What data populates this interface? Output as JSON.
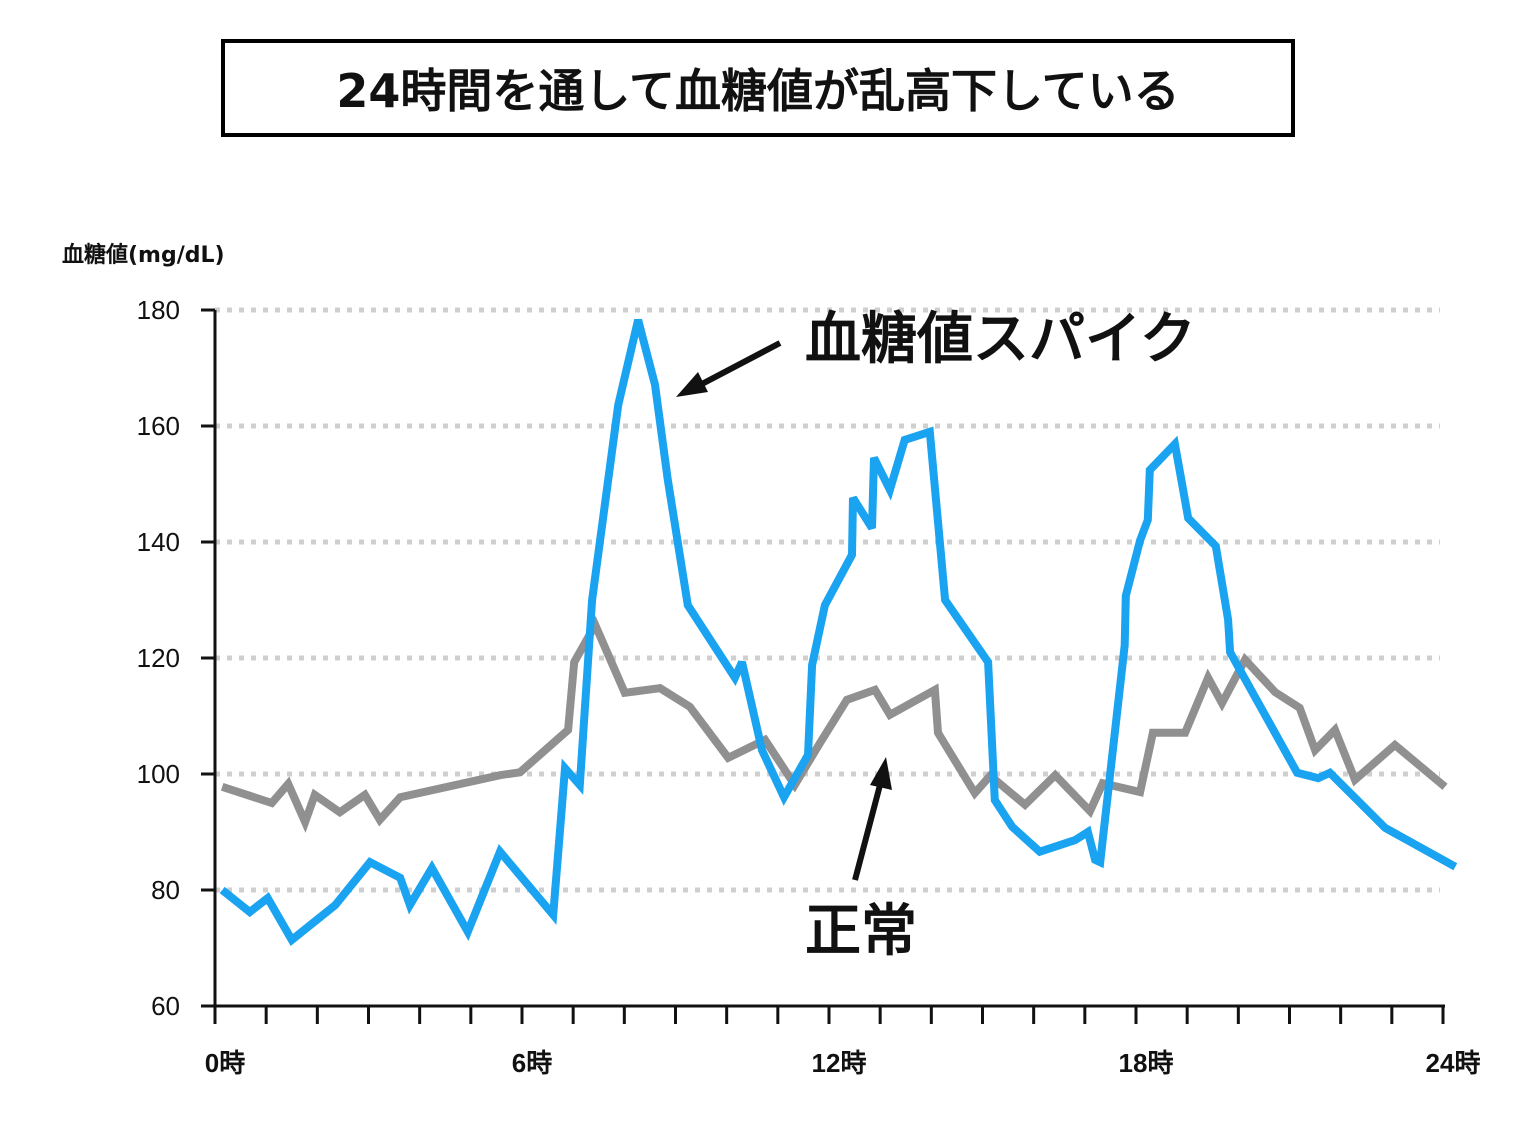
{
  "title": "24時間を通して血糖値が乱高下している",
  "chart_data": {
    "type": "line",
    "title": "24時間を通して血糖値が乱高下している",
    "ylabel": "血糖値(mg/dL)",
    "xlabel": "",
    "ylim": [
      60,
      180
    ],
    "xlim": [
      0,
      24
    ],
    "yticks": [
      60,
      80,
      100,
      120,
      140,
      160,
      180
    ],
    "ytick_labels": [
      "60",
      "80",
      "100",
      "120",
      "140",
      "160",
      "180"
    ],
    "xticks": [
      0,
      6,
      12,
      18,
      24
    ],
    "xtick_labels": [
      "0時",
      "6時",
      "12時",
      "18時",
      "24時"
    ],
    "grid": "horizontal dotted",
    "series": [
      {
        "color": "#1aa3f0",
        "x": [
          0.14,
          0.68,
          1.03,
          1.5,
          2.35,
          3.03,
          3.62,
          3.81,
          4.24,
          4.94,
          5.57,
          6.61,
          6.84,
          7.13,
          7.37,
          7.88,
          8.27,
          8.6,
          8.85,
          9.24,
          10.16,
          10.3,
          10.69,
          11.12,
          11.59,
          11.67,
          11.92,
          12.45,
          12.47,
          12.84,
          12.88,
          13.19,
          13.48,
          13.97,
          14.27,
          15.11,
          15.24,
          15.58,
          16.12,
          16.81,
          17.06,
          17.2,
          17.3,
          17.78,
          17.8,
          18.08,
          18.23,
          18.27,
          18.76,
          19.02,
          19.56,
          19.8,
          19.84,
          21.15,
          21.56,
          21.79,
          22.87,
          24.24
        ],
        "y": [
          80.0,
          76.2,
          78.6,
          71.4,
          77.4,
          84.8,
          82.1,
          77.4,
          83.8,
          72.8,
          86.6,
          75.7,
          101.0,
          98.1,
          130.0,
          163.6,
          178.3,
          167.1,
          150.7,
          129.1,
          116.6,
          119.3,
          104.1,
          96.0,
          103.3,
          118.8,
          129.1,
          137.8,
          147.6,
          142.4,
          154.5,
          149.0,
          157.6,
          159.0,
          130.0,
          119.3,
          95.5,
          90.9,
          86.6,
          88.6,
          90.0,
          85.2,
          84.8,
          122.2,
          130.7,
          140.3,
          143.8,
          152.4,
          156.9,
          144.1,
          139.3,
          126.6,
          121.0,
          100.2,
          99.3,
          100.2,
          90.7,
          84.0
        ]
      },
      {
        "color": "#909090",
        "x": [
          0.14,
          1.11,
          1.43,
          1.76,
          1.95,
          2.44,
          2.93,
          3.22,
          3.62,
          5.57,
          5.96,
          6.9,
          7.02,
          7.43,
          8.01,
          8.7,
          9.28,
          10.03,
          10.75,
          11.33,
          11.82,
          12.35,
          12.9,
          13.19,
          14.07,
          14.13,
          14.85,
          15.15,
          15.83,
          16.42,
          17.1,
          17.35,
          18.08,
          18.33,
          18.96,
          19.41,
          19.68,
          20.13,
          20.72,
          21.2,
          21.5,
          21.89,
          22.28,
          23.06,
          24.04
        ],
        "y": [
          97.8,
          95.0,
          98.3,
          91.7,
          96.4,
          93.4,
          96.4,
          92.1,
          96.0,
          99.8,
          100.3,
          107.6,
          119.3,
          125.7,
          114.0,
          114.8,
          111.6,
          102.8,
          105.9,
          98.1,
          105.3,
          112.8,
          114.5,
          110.2,
          114.5,
          107.1,
          96.7,
          99.7,
          94.7,
          99.8,
          93.6,
          98.4,
          96.9,
          107.1,
          107.1,
          116.6,
          112.2,
          119.7,
          114.1,
          111.4,
          104.1,
          107.6,
          99.0,
          105.0,
          97.8
        ]
      }
    ],
    "annotations": [
      {
        "text": "血糖値スパイク",
        "arrow_to_series": 0
      },
      {
        "text": "正常",
        "arrow_to_series": 1
      }
    ]
  }
}
